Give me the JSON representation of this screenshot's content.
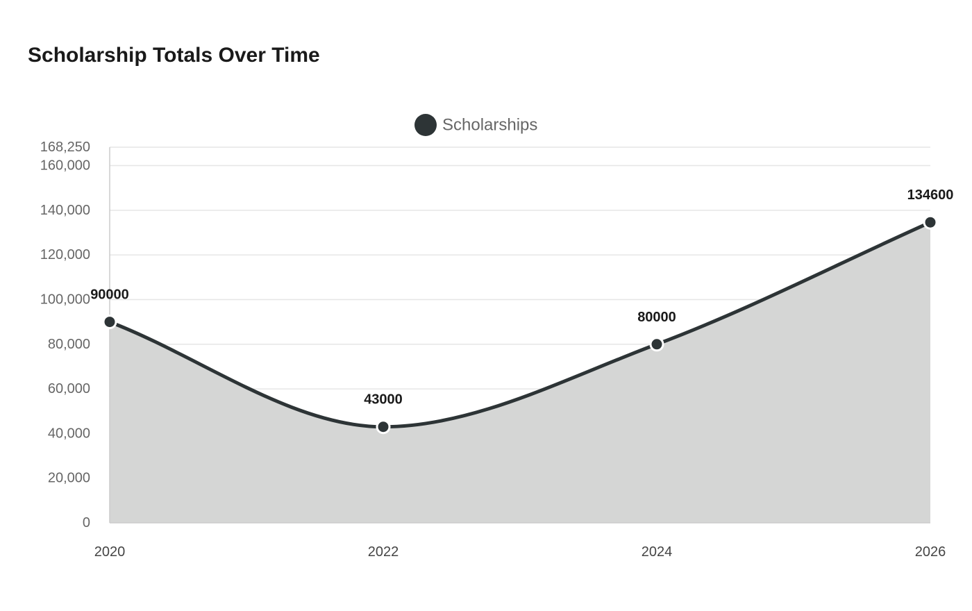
{
  "chart_data": {
    "type": "area",
    "title": "Scholarship Totals Over Time",
    "xlabel": "",
    "ylabel": "",
    "x": [
      "2020",
      "2022",
      "2024",
      "2026"
    ],
    "series": [
      {
        "name": "Scholarships",
        "values": [
          90000,
          43000,
          80000,
          134600
        ]
      }
    ],
    "ylim": [
      0,
      168250
    ],
    "yticks": [
      0,
      20000,
      40000,
      60000,
      80000,
      100000,
      120000,
      140000,
      160000,
      168250
    ],
    "ytick_labels": [
      "0",
      "20,000",
      "40,000",
      "60,000",
      "80,000",
      "100,000",
      "120,000",
      "140,000",
      "160,000",
      "168,250"
    ],
    "data_labels": [
      "90000",
      "43000",
      "80000",
      "134600"
    ],
    "grid": true,
    "legend": "top-center",
    "colors": {
      "line": "#2d3436",
      "fill": "#d5d6d5",
      "grid": "#e6e6e6",
      "axis": "#cccccc"
    }
  }
}
